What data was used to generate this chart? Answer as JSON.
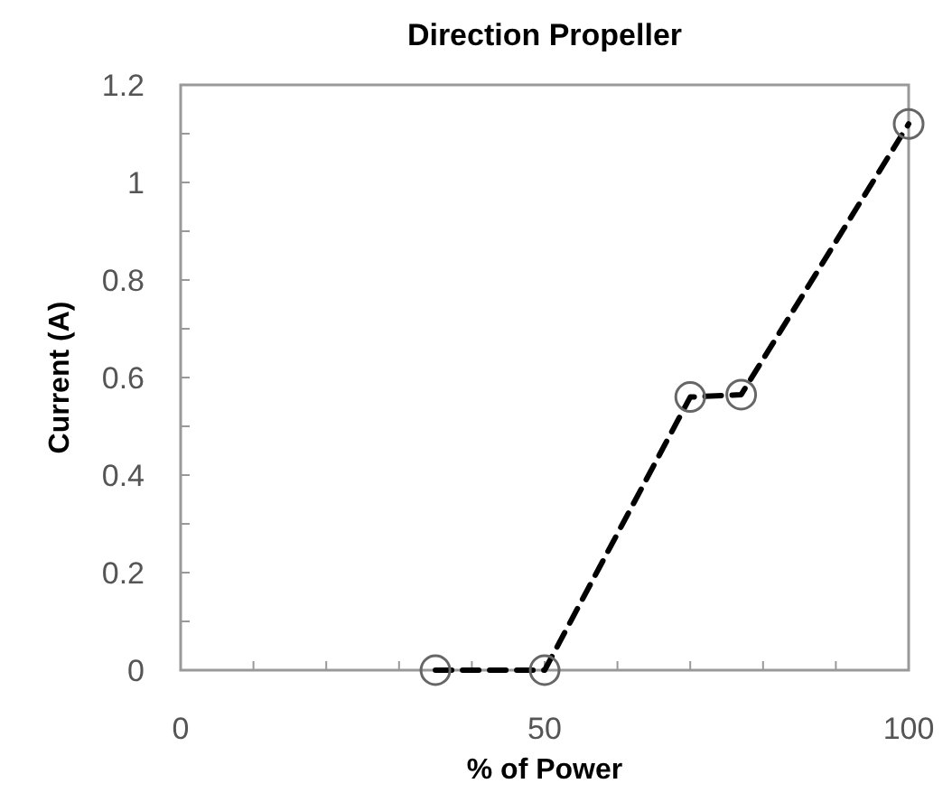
{
  "chart_data": {
    "type": "line",
    "title": "Direction Propeller",
    "xlabel": "% of Power",
    "ylabel": "Current (A)",
    "x": [
      35,
      50,
      70,
      77,
      100
    ],
    "series": [
      {
        "color": "#000000",
        "values": [
          0,
          0,
          0.56,
          0.565,
          1.12
        ]
      }
    ],
    "xlim": [
      0,
      100
    ],
    "ylim": [
      0,
      1.2
    ],
    "xticks": [
      0,
      {
        "value": 10,
        "label": null
      },
      {
        "value": 20,
        "label": null
      },
      {
        "value": 30,
        "label": null
      },
      {
        "value": 40,
        "label": null
      },
      50,
      {
        "value": 60,
        "label": null
      },
      {
        "value": 70,
        "label": null
      },
      {
        "value": 80,
        "label": null
      },
      {
        "value": 90,
        "label": null
      },
      100
    ],
    "yticks": [
      0,
      {
        "value": 0.1,
        "label": null
      },
      0.2,
      {
        "value": 0.3,
        "label": null
      },
      0.4,
      {
        "value": 0.5,
        "label": null
      },
      0.6,
      {
        "value": 0.7,
        "label": null
      },
      0.8,
      {
        "value": 0.9,
        "label": null
      },
      1,
      {
        "value": 1.1,
        "label": null
      },
      1.2
    ],
    "marker": "circle",
    "line_style": "dashed",
    "grid": false
  }
}
